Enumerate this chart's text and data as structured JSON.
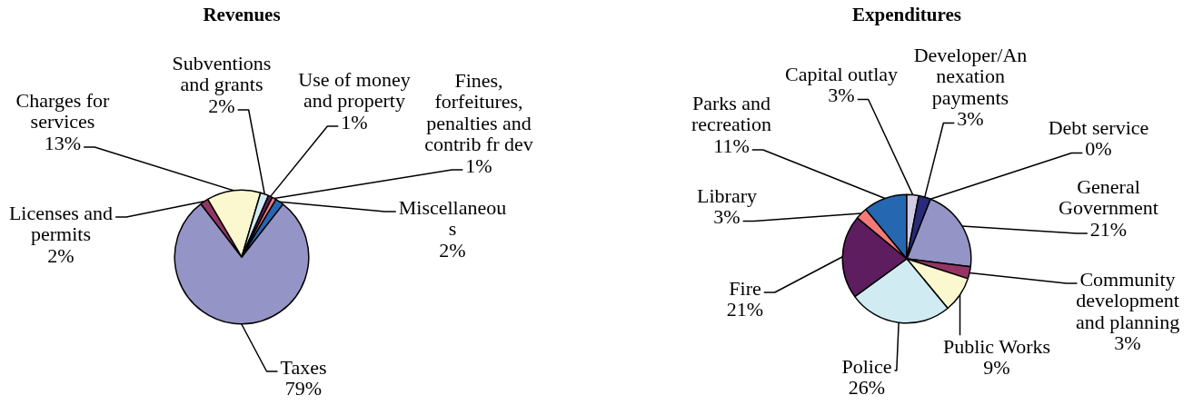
{
  "chart_data": [
    {
      "type": "pie",
      "title": "Revenues",
      "categories": [
        "Taxes",
        "Licenses and permits",
        "Charges for services",
        "Subventions and grants",
        "Use of money and property",
        "Fines, forfeitures, penalties and contrib fr dev",
        "Miscellaneous"
      ],
      "values": [
        79,
        2,
        13,
        2,
        1,
        1,
        2
      ],
      "value_labels": [
        "79%",
        "2%",
        "13%",
        "2%",
        "1%",
        "1%",
        "2%"
      ],
      "colors": [
        "#9494c6",
        "#943565",
        "#fbf8d0",
        "#d0ecf2",
        "#5e1d5e",
        "#f47a7a",
        "#2667b1"
      ]
    },
    {
      "type": "pie",
      "title": "Expenditures",
      "categories": [
        "General Government",
        "Community development and planning",
        "Public Works",
        "Police",
        "Fire",
        "Library",
        "Parks and recreation",
        "Capital outlay",
        "Developer/Annexation payments",
        "Debt service"
      ],
      "values": [
        21,
        3,
        9,
        26,
        21,
        3,
        11,
        3,
        3,
        0
      ],
      "value_labels": [
        "21%",
        "3%",
        "9%",
        "26%",
        "21%",
        "3%",
        "11%",
        "3%",
        "3%",
        "0%"
      ],
      "colors": [
        "#9494c6",
        "#943565",
        "#fbf8d0",
        "#d0ecf2",
        "#5e1d5e",
        "#f47a7a",
        "#2667b1",
        "#cfcde6",
        "#2a2a7a",
        null
      ]
    }
  ]
}
